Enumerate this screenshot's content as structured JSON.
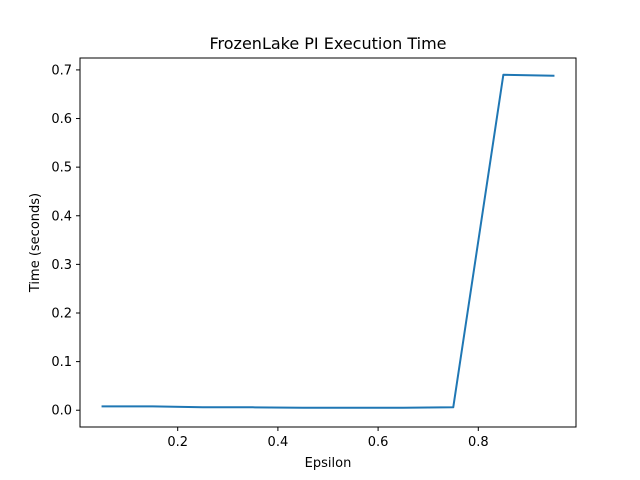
{
  "chart_data": {
    "type": "line",
    "title": "FrozenLake PI Execution Time",
    "xlabel": "Epsilon",
    "ylabel": "Time (seconds)",
    "xlim": [
      0.005,
      0.995
    ],
    "ylim": [
      -0.0345,
      0.7245
    ],
    "xticks": [
      0.2,
      0.4,
      0.6,
      0.8
    ],
    "xtick_labels": [
      "0.2",
      "0.4",
      "0.6",
      "0.8"
    ],
    "yticks": [
      0.0,
      0.1,
      0.2,
      0.3,
      0.4,
      0.5,
      0.6,
      0.7
    ],
    "ytick_labels": [
      "0.0",
      "0.1",
      "0.2",
      "0.3",
      "0.4",
      "0.5",
      "0.6",
      "0.7"
    ],
    "grid": false,
    "series": [
      {
        "color": "#1f77b4",
        "x": [
          0.05,
          0.15,
          0.25,
          0.35,
          0.45,
          0.55,
          0.65,
          0.75,
          0.85,
          0.95
        ],
        "y": [
          0.008,
          0.008,
          0.006,
          0.006,
          0.005,
          0.005,
          0.005,
          0.006,
          0.69,
          0.688
        ]
      }
    ]
  }
}
